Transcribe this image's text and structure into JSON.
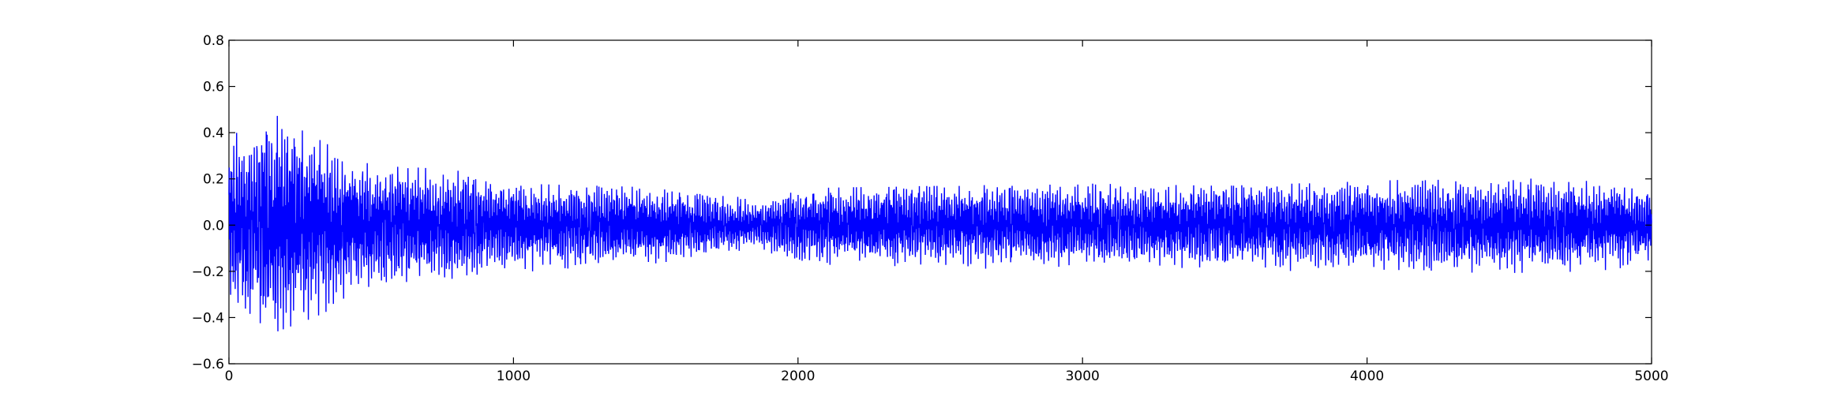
{
  "chart_data": {
    "type": "line",
    "title": "",
    "xlabel": "",
    "ylabel": "",
    "xlim": [
      0,
      5000
    ],
    "ylim": [
      -0.6,
      0.8
    ],
    "x_ticks": [
      0,
      1000,
      2000,
      3000,
      4000,
      5000
    ],
    "y_ticks": [
      -0.6,
      -0.4,
      -0.2,
      0.0,
      0.2,
      0.4,
      0.6,
      0.8
    ],
    "x_tick_labels": [
      "0",
      "1000",
      "2000",
      "3000",
      "4000",
      "5000"
    ],
    "y_tick_labels": [
      "−0.6",
      "−0.4",
      "−0.2",
      "0.0",
      "0.2",
      "0.4",
      "0.6",
      "0.8"
    ],
    "grid": false,
    "series": [
      {
        "color": "#0000ff",
        "n_points": 5000,
        "description_values": "oscillating signal centered at 0",
        "envelope": [
          {
            "x": 0,
            "max": 0.42,
            "min": -0.3
          },
          {
            "x": 150,
            "max": 0.62,
            "min": -0.47
          },
          {
            "x": 300,
            "max": 0.38,
            "min": -0.4
          },
          {
            "x": 500,
            "max": 0.26,
            "min": -0.28
          },
          {
            "x": 800,
            "max": 0.24,
            "min": -0.23
          },
          {
            "x": 1000,
            "max": 0.18,
            "min": -0.2
          },
          {
            "x": 1300,
            "max": 0.17,
            "min": -0.2
          },
          {
            "x": 1600,
            "max": 0.16,
            "min": -0.15
          },
          {
            "x": 1850,
            "max": 0.11,
            "min": -0.1
          },
          {
            "x": 2000,
            "max": 0.16,
            "min": -0.18
          },
          {
            "x": 2500,
            "max": 0.17,
            "min": -0.19
          },
          {
            "x": 3000,
            "max": 0.18,
            "min": -0.19
          },
          {
            "x": 3500,
            "max": 0.17,
            "min": -0.2
          },
          {
            "x": 4000,
            "max": 0.19,
            "min": -0.2
          },
          {
            "x": 4400,
            "max": 0.21,
            "min": -0.21
          },
          {
            "x": 4800,
            "max": 0.19,
            "min": -0.2
          },
          {
            "x": 5000,
            "max": 0.17,
            "min": -0.17
          }
        ]
      }
    ]
  }
}
